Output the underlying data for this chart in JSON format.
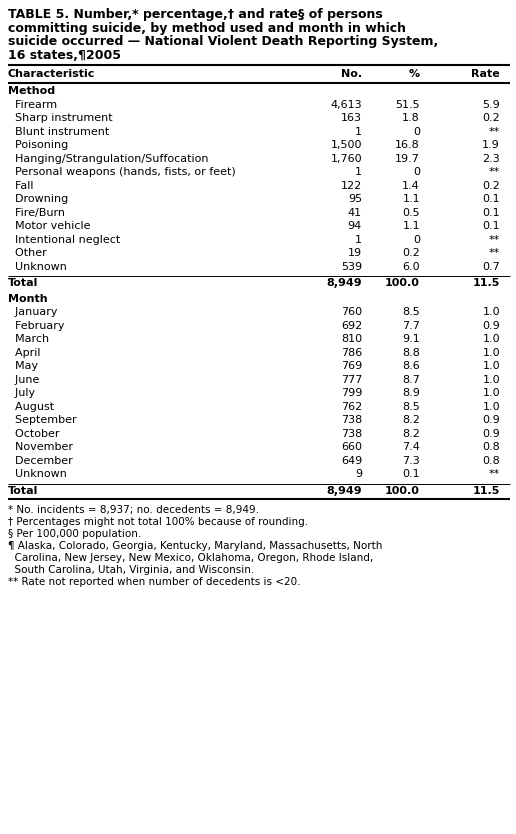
{
  "title_lines": [
    "TABLE 5. Number,* percentage,† and rate§ of persons",
    "committing suicide, by method used and month in which",
    "suicide occurred — National Violent Death Reporting System,",
    "16 states,¶2005"
  ],
  "col_headers": [
    "Characteristic",
    "No.",
    "%",
    "Rate"
  ],
  "sections": [
    {
      "name": "Method",
      "rows": [
        {
          "char": "  Firearm",
          "no": "4,613",
          "pct": "51.5",
          "rate": "5.9"
        },
        {
          "char": "  Sharp instrument",
          "no": "163",
          "pct": "1.8",
          "rate": "0.2"
        },
        {
          "char": "  Blunt instrument",
          "no": "1",
          "pct": "0",
          "rate": "**"
        },
        {
          "char": "  Poisoning",
          "no": "1,500",
          "pct": "16.8",
          "rate": "1.9"
        },
        {
          "char": "  Hanging/Strangulation/Suffocation",
          "no": "1,760",
          "pct": "19.7",
          "rate": "2.3"
        },
        {
          "char": "  Personal weapons (hands, fists, or feet)",
          "no": "1",
          "pct": "0",
          "rate": "**"
        },
        {
          "char": "  Fall",
          "no": "122",
          "pct": "1.4",
          "rate": "0.2"
        },
        {
          "char": "  Drowning",
          "no": "95",
          "pct": "1.1",
          "rate": "0.1"
        },
        {
          "char": "  Fire/Burn",
          "no": "41",
          "pct": "0.5",
          "rate": "0.1"
        },
        {
          "char": "  Motor vehicle",
          "no": "94",
          "pct": "1.1",
          "rate": "0.1"
        },
        {
          "char": "  Intentional neglect",
          "no": "1",
          "pct": "0",
          "rate": "**"
        },
        {
          "char": "  Other",
          "no": "19",
          "pct": "0.2",
          "rate": "**"
        },
        {
          "char": "  Unknown",
          "no": "539",
          "pct": "6.0",
          "rate": "0.7"
        }
      ],
      "total": {
        "char": "Total",
        "no": "8,949",
        "pct": "100.0",
        "rate": "11.5"
      }
    },
    {
      "name": "Month",
      "rows": [
        {
          "char": "  January",
          "no": "760",
          "pct": "8.5",
          "rate": "1.0"
        },
        {
          "char": "  February",
          "no": "692",
          "pct": "7.7",
          "rate": "0.9"
        },
        {
          "char": "  March",
          "no": "810",
          "pct": "9.1",
          "rate": "1.0"
        },
        {
          "char": "  April",
          "no": "786",
          "pct": "8.8",
          "rate": "1.0"
        },
        {
          "char": "  May",
          "no": "769",
          "pct": "8.6",
          "rate": "1.0"
        },
        {
          "char": "  June",
          "no": "777",
          "pct": "8.7",
          "rate": "1.0"
        },
        {
          "char": "  July",
          "no": "799",
          "pct": "8.9",
          "rate": "1.0"
        },
        {
          "char": "  August",
          "no": "762",
          "pct": "8.5",
          "rate": "1.0"
        },
        {
          "char": "  September",
          "no": "738",
          "pct": "8.2",
          "rate": "0.9"
        },
        {
          "char": "  October",
          "no": "738",
          "pct": "8.2",
          "rate": "0.9"
        },
        {
          "char": "  November",
          "no": "660",
          "pct": "7.4",
          "rate": "0.8"
        },
        {
          "char": "  December",
          "no": "649",
          "pct": "7.3",
          "rate": "0.8"
        },
        {
          "char": "  Unknown",
          "no": "9",
          "pct": "0.1",
          "rate": "**"
        }
      ],
      "total": {
        "char": "Total",
        "no": "8,949",
        "pct": "100.0",
        "rate": "11.5"
      }
    }
  ],
  "footnotes": [
    "* No. incidents = 8,937; no. decedents = 8,949.",
    "† Percentages might not total 100% because of rounding.",
    "§ Per 100,000 population.",
    "¶ Alaska, Colorado, Georgia, Kentucky, Maryland, Massachusetts, North",
    "  Carolina, New Jersey, New Mexico, Oklahoma, Oregon, Rhode Island,",
    "  South Carolina, Utah, Virginia, and Wisconsin.",
    "** Rate not reported when number of decedents is <20."
  ],
  "bg_color": "#ffffff",
  "text_color": "#000000",
  "font_size": 8.0,
  "title_font_size": 9.0,
  "footnote_font_size": 7.5
}
